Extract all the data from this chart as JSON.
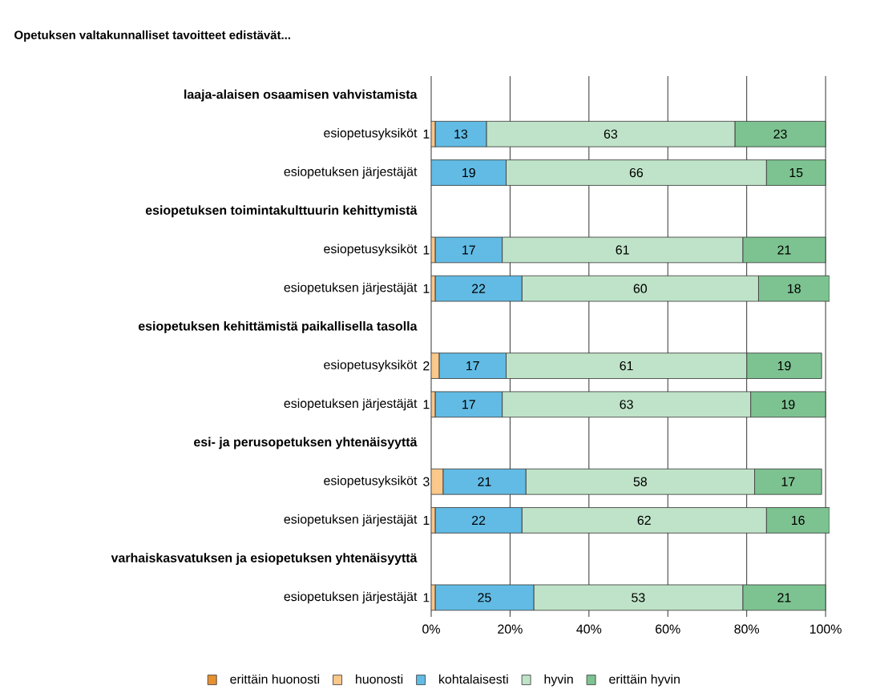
{
  "chart_data": {
    "type": "bar",
    "orientation": "horizontal",
    "stacked": true,
    "title": "Opetuksen valtakunnalliset tavoitteet edistävät...",
    "categories": [
      "laaja-alaisen osaamisen vahvistamista",
      "esiopetusyksiköt",
      "esiopetuksen järjestäjät",
      "esiopetuksen toimintakulttuurin kehittymistä",
      "esiopetusyksiköt",
      "esiopetuksen järjestäjät",
      "esiopetuksen kehittämistä paikallisella tasolla",
      "esiopetusyksiköt",
      "esiopetuksen järjestäjät",
      "esi- ja perusopetuksen yhtenäisyyttä",
      "esiopetusyksiköt",
      "esiopetuksen järjestäjät",
      "varhaiskasvatuksen ja esiopetuksen yhtenäisyyttä",
      "esiopetuksen järjestäjät"
    ],
    "series": [
      {
        "name": "erittäin huonosti",
        "color": "#e8902f",
        "values": [
          null,
          0,
          0,
          null,
          0,
          0,
          null,
          0,
          0,
          null,
          0,
          0,
          null,
          0
        ],
        "value_labels": [
          null,
          null,
          null,
          null,
          null,
          null,
          null,
          null,
          null,
          null,
          null,
          null,
          null,
          null
        ]
      },
      {
        "name": "huonosti",
        "color": "#f9c88a",
        "values": [
          null,
          1,
          0,
          null,
          1,
          1,
          null,
          2,
          1,
          null,
          3,
          1,
          null,
          1
        ],
        "value_labels": [
          null,
          "1",
          null,
          null,
          "1",
          "1",
          null,
          "2",
          "1",
          null,
          "3",
          "1",
          null,
          "1"
        ]
      },
      {
        "name": "kohtalaisesti",
        "color": "#62bbe4",
        "values": [
          null,
          13,
          19,
          null,
          17,
          22,
          null,
          17,
          17,
          null,
          21,
          22,
          null,
          25
        ],
        "value_labels": [
          null,
          "13",
          "19",
          null,
          "17",
          "22",
          null,
          "17",
          "17",
          null,
          "21",
          "22",
          null,
          "25"
        ]
      },
      {
        "name": "hyvin",
        "color": "#bfe3c8",
        "values": [
          null,
          63,
          66,
          null,
          61,
          60,
          null,
          61,
          63,
          null,
          58,
          62,
          null,
          53
        ],
        "value_labels": [
          null,
          "63",
          "66",
          null,
          "61",
          "60",
          null,
          "61",
          "63",
          null,
          "58",
          "62",
          null,
          "53"
        ]
      },
      {
        "name": "erittäin hyvin",
        "color": "#7dc391",
        "values": [
          null,
          23,
          15,
          null,
          21,
          18,
          null,
          19,
          19,
          null,
          17,
          16,
          null,
          21
        ],
        "value_labels": [
          null,
          "23",
          "15",
          null,
          "21",
          "18",
          null,
          "19",
          "19",
          null,
          "17",
          "16",
          null,
          "21"
        ]
      }
    ],
    "xlim": [
      0,
      101
    ],
    "xticks": [
      {
        "value": 0,
        "label": "0%"
      },
      {
        "value": 20,
        "label": "20%"
      },
      {
        "value": 40,
        "label": "40%"
      },
      {
        "value": 60,
        "label": "60%"
      },
      {
        "value": 80,
        "label": "80%"
      },
      {
        "value": 100,
        "label": "100%"
      }
    ],
    "grid": "x",
    "legend": "bottom"
  }
}
